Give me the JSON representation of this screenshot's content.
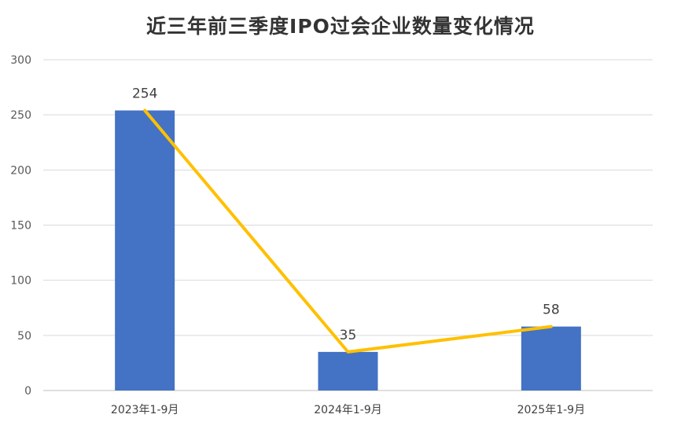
{
  "chart_data": {
    "type": "bar",
    "title": "近三年前三季度IPO过会企业数量变化情况",
    "categories": [
      "2023年1-9月",
      "2024年1-9月",
      "2025年1-9月"
    ],
    "values": [
      254,
      35,
      58
    ],
    "data_labels": [
      "254",
      "35",
      "58"
    ],
    "overlay_line": {
      "values": [
        254,
        35,
        58
      ]
    },
    "ylim": [
      0,
      300
    ],
    "yticks": [
      "0",
      "50",
      "100",
      "150",
      "200",
      "250",
      "300"
    ],
    "xlabel": "",
    "ylabel": "",
    "grid": true,
    "legend": "none",
    "colors": {
      "bar": "#4472C4",
      "line": "#FFC000",
      "grid": "#D9D9D9",
      "axis": "#BFBFBF"
    }
  }
}
